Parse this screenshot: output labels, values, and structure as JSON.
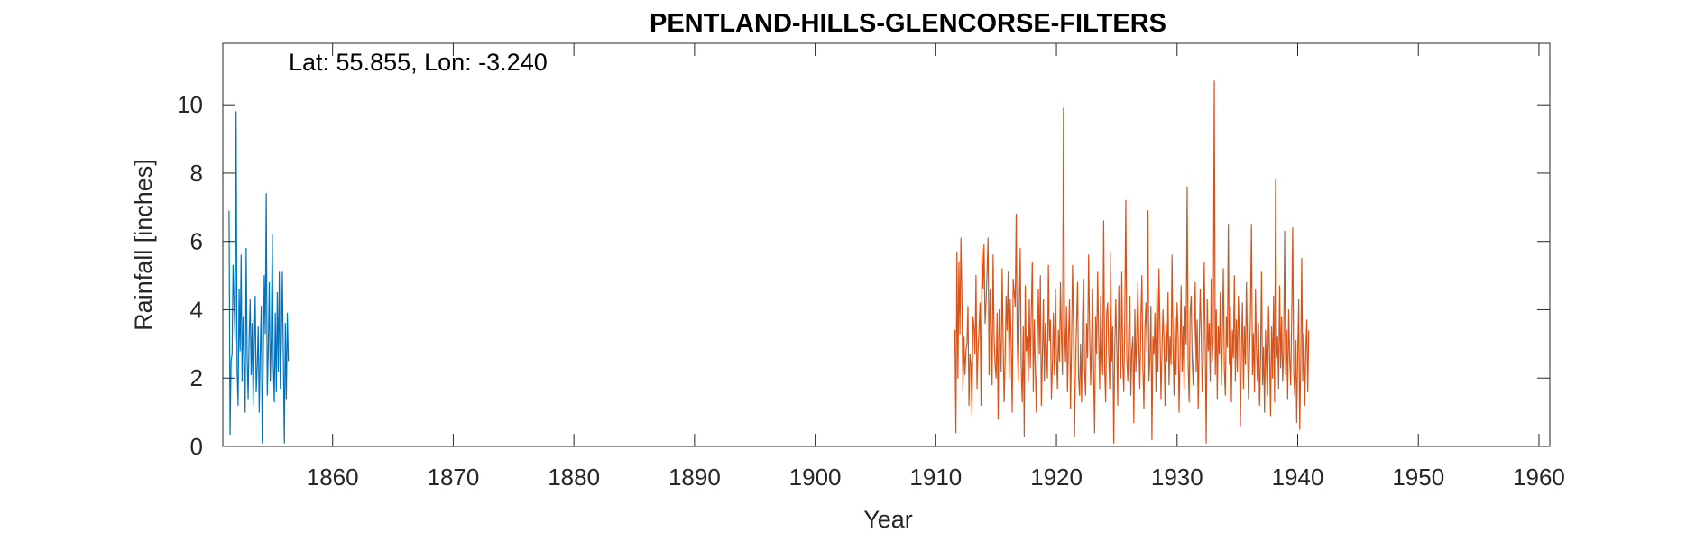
{
  "chart_data": {
    "type": "line",
    "title": "PENTLAND-HILLS-GLENCORSE-FILTERS",
    "annotation": "Lat: 55.855, Lon: -3.240",
    "xlabel": "Year",
    "ylabel": "Rainfall [inches]",
    "xlim": [
      1850.9,
      1960.9
    ],
    "ylim": [
      0,
      11.8
    ],
    "xticks": [
      1860,
      1870,
      1880,
      1890,
      1900,
      1910,
      1920,
      1930,
      1940,
      1950,
      1960
    ],
    "yticks": [
      0,
      2,
      4,
      6,
      8,
      10
    ],
    "grid": false,
    "box": true,
    "series": [
      {
        "color": "#0072BD",
        "start": 1851.417,
        "step": 0.0833333,
        "values": [
          6.9,
          0.35,
          2.5,
          2.7,
          5.3,
          4.2,
          3.1,
          9.8,
          2.2,
          1.2,
          4.6,
          2.8,
          5.6,
          1.9,
          3.8,
          2.5,
          1.0,
          5.8,
          2.6,
          1.4,
          3.2,
          4.3,
          2.1,
          3.6,
          1.2,
          2.9,
          4.4,
          1.6,
          2.3,
          3.5,
          1.0,
          2.7,
          4.1,
          0.1,
          2.5,
          5.0,
          3.3,
          7.4,
          1.5,
          2.8,
          4.8,
          1.9,
          3.2,
          6.2,
          2.4,
          1.3,
          3.9,
          1.6,
          4.5,
          2.2,
          5.1,
          1.7,
          3.0,
          5.1,
          2.6,
          0.1,
          3.6,
          1.4,
          3.9,
          2.5
        ]
      },
      {
        "color": "#D95319",
        "start": 1911.5,
        "step": 0.0833333,
        "values": [
          2.7,
          3.4,
          0.4,
          5.7,
          2.0,
          5.4,
          3.3,
          6.1,
          4.3,
          1.6,
          3.2,
          2.1,
          2.8,
          3.0,
          4.1,
          1.2,
          2.7,
          2.4,
          0.9,
          3.8,
          3.5,
          2.7,
          5.0,
          1.7,
          2.8,
          3.4,
          4.2,
          1.2,
          5.8,
          4.6,
          5.9,
          3.6,
          4.2,
          5.1,
          6.1,
          2.1,
          4.6,
          3.5,
          1.8,
          5.6,
          3.2,
          2.4,
          2.0,
          3.9,
          0.8,
          4.0,
          3.1,
          2.2,
          5.2,
          3.0,
          1.3,
          2.6,
          4.4,
          3.4,
          5.1,
          2.0,
          4.3,
          3.0,
          1.0,
          4.9,
          4.5,
          4.1,
          6.8,
          3.1,
          1.9,
          4.0,
          5.8,
          2.3,
          1.3,
          3.5,
          0.3,
          4.7,
          2.8,
          3.2,
          1.9,
          4.3,
          2.3,
          3.9,
          5.4,
          1.6,
          3.7,
          2.3,
          1.0,
          3.0,
          4.6,
          2.7,
          5.0,
          1.2,
          2.6,
          4.3,
          1.9,
          3.6,
          2.9,
          2.0,
          5.3,
          3.1,
          3.7,
          1.4,
          2.4,
          3.9,
          2.1,
          4.6,
          2.7,
          1.7,
          3.4,
          2.5,
          4.8,
          3.2,
          2.1,
          9.9,
          3.6,
          2.5,
          4.1,
          1.6,
          3.2,
          4.3,
          1.1,
          2.9,
          5.3,
          3.4,
          0.3,
          2.4,
          3.6,
          4.8,
          2.0,
          1.5,
          3.0,
          1.3,
          3.8,
          4.9,
          2.2,
          1.5,
          3.6,
          2.6,
          5.6,
          3.4,
          1.8,
          3.2,
          4.6,
          2.1,
          0.4,
          3.8,
          2.7,
          5.1,
          3.2,
          1.7,
          4.4,
          2.9,
          2.1,
          6.6,
          2.3,
          1.3,
          3.9,
          4.2,
          2.7,
          1.7,
          5.7,
          2.5,
          3.5,
          0.1,
          2.8,
          4.3,
          3.0,
          1.2,
          4.7,
          3.1,
          2.0,
          5.1,
          2.4,
          1.6,
          3.8,
          7.2,
          2.6,
          1.9,
          3.5,
          4.4,
          1.5,
          2.8,
          3.2,
          0.7,
          4.0,
          2.2,
          3.3,
          4.8,
          2.9,
          1.7,
          3.7,
          5.0,
          2.3,
          1.1,
          3.4,
          4.2,
          2.8,
          6.9,
          1.9,
          2.6,
          4.1,
          0.2,
          3.2,
          2.7,
          3.9,
          1.6,
          4.6,
          2.2,
          5.2,
          3.4,
          1.4,
          2.8,
          4.0,
          3.1,
          1.2,
          3.6,
          2.5,
          4.5,
          1.8,
          3.2,
          2.4,
          5.6,
          2.9,
          1.5,
          3.8,
          2.1,
          4.2,
          3.3,
          1.0,
          2.7,
          4.7,
          2.2,
          3.5,
          1.7,
          4.1,
          3.0,
          7.6,
          2.4,
          1.3,
          3.9,
          4.4,
          2.6,
          1.8,
          3.1,
          4.8,
          2.2,
          3.7,
          1.1,
          2.9,
          4.6,
          3.4,
          1.6,
          2.5,
          5.4,
          3.0,
          0.1,
          4.3,
          2.8,
          3.6,
          1.9,
          4.9,
          2.5,
          3.3,
          10.7,
          2.1,
          4.0,
          1.4,
          3.5,
          2.7,
          4.5,
          1.8,
          3.2,
          5.2,
          2.3,
          1.5,
          3.8,
          2.9,
          6.5,
          2.4,
          4.1,
          1.3,
          3.4,
          2.6,
          5.0,
          1.9,
          3.7,
          2.2,
          4.4,
          3.1,
          0.6,
          2.8,
          4.2,
          1.7,
          3.5,
          2.4,
          4.8,
          3.0,
          1.4,
          2.6,
          3.9,
          6.5,
          2.1,
          3.3,
          1.6,
          4.6,
          2.8,
          1.9,
          3.6,
          1.2,
          2.5,
          5.1,
          1.8,
          2.9,
          1.0,
          3.4,
          2.2,
          1.5,
          4.1,
          2.7,
          0.9,
          3.5,
          2.0,
          4.4,
          1.3,
          7.8,
          2.6,
          3.2,
          1.7,
          4.7,
          2.3,
          3.8,
          1.9,
          2.8,
          6.3,
          2.1,
          3.4,
          1.4,
          4.0,
          2.6,
          1.8,
          3.7,
          6.4,
          2.2,
          1.5,
          3.1,
          0.7,
          2.7,
          4.3,
          0.5,
          2.4,
          5.5,
          1.9,
          3.3,
          1.2,
          2.8,
          3.7,
          1.6,
          3.4
        ]
      }
    ]
  }
}
